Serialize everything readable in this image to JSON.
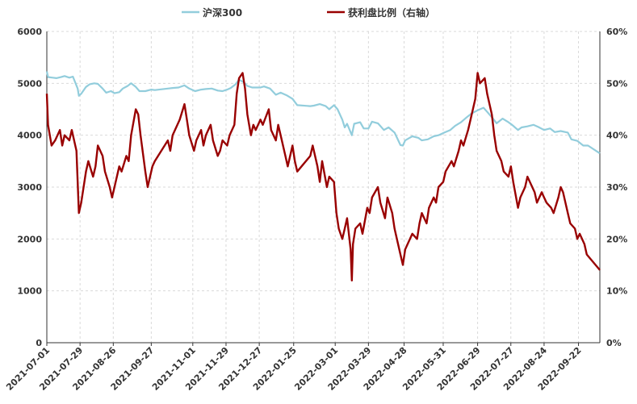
{
  "chart_data": {
    "type": "line",
    "legend": {
      "placement": "top-center"
    },
    "grid": true,
    "x_ticks": [
      "2021-07-01",
      "2021-07-29",
      "2021-08-26",
      "2021-09-27",
      "2021-11-01",
      "2021-11-29",
      "2021-12-27",
      "2022-01-25",
      "2022-03-01",
      "2022-03-29",
      "2022-04-28",
      "2022-05-31",
      "2022-06-29",
      "2022-07-27",
      "2022-08-24",
      "2022-09-22"
    ],
    "x_range": [
      "2021-07-01",
      "2022-10-10"
    ],
    "y_left": {
      "range": [
        0,
        6000
      ],
      "ticks": [
        "0",
        "1000",
        "2000",
        "3000",
        "4000",
        "5000",
        "6000"
      ]
    },
    "y_right": {
      "range": [
        0,
        60
      ],
      "ticks": [
        "0%",
        "10%",
        "20%",
        "30%",
        "40%",
        "50%",
        "60%"
      ]
    },
    "series": [
      {
        "name": "沪深300",
        "axis": "left",
        "color": "#92cddc",
        "points": [
          [
            "2021-07-01",
            5230
          ],
          [
            "2021-07-02",
            5120
          ],
          [
            "2021-07-06",
            5110
          ],
          [
            "2021-07-09",
            5100
          ],
          [
            "2021-07-13",
            5120
          ],
          [
            "2021-07-16",
            5140
          ],
          [
            "2021-07-20",
            5110
          ],
          [
            "2021-07-23",
            5130
          ],
          [
            "2021-07-27",
            4900
          ],
          [
            "2021-07-28",
            4760
          ],
          [
            "2021-07-30",
            4800
          ],
          [
            "2021-08-03",
            4930
          ],
          [
            "2021-08-06",
            4980
          ],
          [
            "2021-08-10",
            5000
          ],
          [
            "2021-08-13",
            4990
          ],
          [
            "2021-08-17",
            4900
          ],
          [
            "2021-08-20",
            4820
          ],
          [
            "2021-08-24",
            4850
          ],
          [
            "2021-08-27",
            4810
          ],
          [
            "2021-08-31",
            4830
          ],
          [
            "2021-09-03",
            4900
          ],
          [
            "2021-09-07",
            4950
          ],
          [
            "2021-09-10",
            5000
          ],
          [
            "2021-09-14",
            4930
          ],
          [
            "2021-09-17",
            4850
          ],
          [
            "2021-09-22",
            4850
          ],
          [
            "2021-09-27",
            4880
          ],
          [
            "2021-09-30",
            4870
          ],
          [
            "2021-10-11",
            4900
          ],
          [
            "2021-10-15",
            4910
          ],
          [
            "2021-10-20",
            4920
          ],
          [
            "2021-10-25",
            4960
          ],
          [
            "2021-10-29",
            4900
          ],
          [
            "2021-11-03",
            4850
          ],
          [
            "2021-11-08",
            4880
          ],
          [
            "2021-11-12",
            4890
          ],
          [
            "2021-11-17",
            4900
          ],
          [
            "2021-11-22",
            4860
          ],
          [
            "2021-11-26",
            4850
          ],
          [
            "2021-11-30",
            4880
          ],
          [
            "2021-12-03",
            4910
          ],
          [
            "2021-12-07",
            4980
          ],
          [
            "2021-12-10",
            5070
          ],
          [
            "2021-12-14",
            5020
          ],
          [
            "2021-12-17",
            4950
          ],
          [
            "2021-12-21",
            4920
          ],
          [
            "2021-12-24",
            4920
          ],
          [
            "2021-12-28",
            4920
          ],
          [
            "2021-12-31",
            4940
          ],
          [
            "2022-01-05",
            4900
          ],
          [
            "2022-01-10",
            4780
          ],
          [
            "2022-01-14",
            4820
          ],
          [
            "2022-01-19",
            4770
          ],
          [
            "2022-01-24",
            4700
          ],
          [
            "2022-01-28",
            4580
          ],
          [
            "2022-02-08",
            4560
          ],
          [
            "2022-02-11",
            4570
          ],
          [
            "2022-02-16",
            4600
          ],
          [
            "2022-02-21",
            4560
          ],
          [
            "2022-02-24",
            4500
          ],
          [
            "2022-02-28",
            4580
          ],
          [
            "2022-03-03",
            4500
          ],
          [
            "2022-03-07",
            4300
          ],
          [
            "2022-03-09",
            4150
          ],
          [
            "2022-03-11",
            4220
          ],
          [
            "2022-03-15",
            4000
          ],
          [
            "2022-03-17",
            4220
          ],
          [
            "2022-03-22",
            4250
          ],
          [
            "2022-03-25",
            4130
          ],
          [
            "2022-03-29",
            4130
          ],
          [
            "2022-04-01",
            4260
          ],
          [
            "2022-04-06",
            4230
          ],
          [
            "2022-04-11",
            4100
          ],
          [
            "2022-04-15",
            4150
          ],
          [
            "2022-04-20",
            4050
          ],
          [
            "2022-04-25",
            3810
          ],
          [
            "2022-04-27",
            3800
          ],
          [
            "2022-04-29",
            3900
          ],
          [
            "2022-05-05",
            3980
          ],
          [
            "2022-05-10",
            3950
          ],
          [
            "2022-05-13",
            3900
          ],
          [
            "2022-05-18",
            3920
          ],
          [
            "2022-05-23",
            3980
          ],
          [
            "2022-05-27",
            4000
          ],
          [
            "2022-06-01",
            4050
          ],
          [
            "2022-06-06",
            4100
          ],
          [
            "2022-06-10",
            4180
          ],
          [
            "2022-06-15",
            4250
          ],
          [
            "2022-06-20",
            4350
          ],
          [
            "2022-06-24",
            4420
          ],
          [
            "2022-06-29",
            4480
          ],
          [
            "2022-07-04",
            4530
          ],
          [
            "2022-07-07",
            4450
          ],
          [
            "2022-07-12",
            4320
          ],
          [
            "2022-07-15",
            4230
          ],
          [
            "2022-07-20",
            4320
          ],
          [
            "2022-07-25",
            4250
          ],
          [
            "2022-07-28",
            4200
          ],
          [
            "2022-08-02",
            4100
          ],
          [
            "2022-08-05",
            4150
          ],
          [
            "2022-08-10",
            4170
          ],
          [
            "2022-08-15",
            4200
          ],
          [
            "2022-08-19",
            4160
          ],
          [
            "2022-08-24",
            4100
          ],
          [
            "2022-08-29",
            4130
          ],
          [
            "2022-09-02",
            4060
          ],
          [
            "2022-09-07",
            4080
          ],
          [
            "2022-09-13",
            4050
          ],
          [
            "2022-09-16",
            3920
          ],
          [
            "2022-09-21",
            3890
          ],
          [
            "2022-09-26",
            3800
          ],
          [
            "2022-09-30",
            3800
          ],
          [
            "2022-10-10",
            3650
          ]
        ]
      },
      {
        "name": "获利盘比例（右轴）",
        "axis": "right",
        "color": "#990000",
        "points": [
          [
            "2021-07-01",
            48
          ],
          [
            "2021-07-02",
            42
          ],
          [
            "2021-07-05",
            38
          ],
          [
            "2021-07-08",
            39
          ],
          [
            "2021-07-12",
            41
          ],
          [
            "2021-07-14",
            38
          ],
          [
            "2021-07-16",
            40
          ],
          [
            "2021-07-20",
            39
          ],
          [
            "2021-07-22",
            41
          ],
          [
            "2021-07-26",
            37
          ],
          [
            "2021-07-28",
            25
          ],
          [
            "2021-07-30",
            27
          ],
          [
            "2021-08-03",
            33
          ],
          [
            "2021-08-05",
            35
          ],
          [
            "2021-08-09",
            32
          ],
          [
            "2021-08-11",
            34
          ],
          [
            "2021-08-13",
            38
          ],
          [
            "2021-08-17",
            36
          ],
          [
            "2021-08-19",
            33
          ],
          [
            "2021-08-23",
            30
          ],
          [
            "2021-08-25",
            28
          ],
          [
            "2021-08-27",
            30
          ],
          [
            "2021-08-31",
            34
          ],
          [
            "2021-09-02",
            33
          ],
          [
            "2021-09-06",
            36
          ],
          [
            "2021-09-08",
            35
          ],
          [
            "2021-09-10",
            40
          ],
          [
            "2021-09-14",
            45
          ],
          [
            "2021-09-16",
            44
          ],
          [
            "2021-09-18",
            40
          ],
          [
            "2021-09-22",
            33
          ],
          [
            "2021-09-24",
            30
          ],
          [
            "2021-09-28",
            34
          ],
          [
            "2021-09-30",
            35
          ],
          [
            "2021-10-11",
            39
          ],
          [
            "2021-10-13",
            37
          ],
          [
            "2021-10-15",
            40
          ],
          [
            "2021-10-19",
            42
          ],
          [
            "2021-10-21",
            43
          ],
          [
            "2021-10-25",
            46
          ],
          [
            "2021-10-27",
            43
          ],
          [
            "2021-10-29",
            40
          ],
          [
            "2021-11-02",
            37
          ],
          [
            "2021-11-04",
            39
          ],
          [
            "2021-11-08",
            41
          ],
          [
            "2021-11-10",
            38
          ],
          [
            "2021-11-12",
            40
          ],
          [
            "2021-11-16",
            42
          ],
          [
            "2021-11-18",
            39
          ],
          [
            "2021-11-22",
            36
          ],
          [
            "2021-11-24",
            37
          ],
          [
            "2021-11-26",
            39
          ],
          [
            "2021-11-30",
            38
          ],
          [
            "2021-12-02",
            40
          ],
          [
            "2021-12-06",
            42
          ],
          [
            "2021-12-08",
            48
          ],
          [
            "2021-12-10",
            51
          ],
          [
            "2021-12-13",
            52
          ],
          [
            "2021-12-15",
            49
          ],
          [
            "2021-12-17",
            44
          ],
          [
            "2021-12-20",
            40
          ],
          [
            "2021-12-22",
            42
          ],
          [
            "2021-12-24",
            41
          ],
          [
            "2021-12-28",
            43
          ],
          [
            "2021-12-30",
            42
          ],
          [
            "2022-01-04",
            45
          ],
          [
            "2022-01-06",
            41
          ],
          [
            "2022-01-10",
            39
          ],
          [
            "2022-01-12",
            42
          ],
          [
            "2022-01-14",
            40
          ],
          [
            "2022-01-18",
            36
          ],
          [
            "2022-01-20",
            34
          ],
          [
            "2022-01-24",
            38
          ],
          [
            "2022-01-26",
            35
          ],
          [
            "2022-01-28",
            33
          ],
          [
            "2022-02-08",
            36
          ],
          [
            "2022-02-10",
            38
          ],
          [
            "2022-02-14",
            34
          ],
          [
            "2022-02-16",
            31
          ],
          [
            "2022-02-18",
            35
          ],
          [
            "2022-02-22",
            30
          ],
          [
            "2022-02-24",
            32
          ],
          [
            "2022-02-28",
            31
          ],
          [
            "2022-03-02",
            25
          ],
          [
            "2022-03-04",
            22
          ],
          [
            "2022-03-07",
            20
          ],
          [
            "2022-03-09",
            22
          ],
          [
            "2022-03-11",
            24
          ],
          [
            "2022-03-14",
            18
          ],
          [
            "2022-03-15",
            12
          ],
          [
            "2022-03-16",
            19
          ],
          [
            "2022-03-18",
            22
          ],
          [
            "2022-03-22",
            23
          ],
          [
            "2022-03-24",
            21
          ],
          [
            "2022-03-28",
            26
          ],
          [
            "2022-03-30",
            25
          ],
          [
            "2022-04-01",
            28
          ],
          [
            "2022-04-06",
            30
          ],
          [
            "2022-04-08",
            27
          ],
          [
            "2022-04-12",
            24
          ],
          [
            "2022-04-14",
            28
          ],
          [
            "2022-04-18",
            25
          ],
          [
            "2022-04-20",
            22
          ],
          [
            "2022-04-22",
            20
          ],
          [
            "2022-04-25",
            17
          ],
          [
            "2022-04-27",
            15
          ],
          [
            "2022-04-29",
            18
          ],
          [
            "2022-05-05",
            21
          ],
          [
            "2022-05-09",
            20
          ],
          [
            "2022-05-11",
            23
          ],
          [
            "2022-05-13",
            25
          ],
          [
            "2022-05-17",
            23
          ],
          [
            "2022-05-19",
            26
          ],
          [
            "2022-05-23",
            28
          ],
          [
            "2022-05-25",
            27
          ],
          [
            "2022-05-27",
            30
          ],
          [
            "2022-05-31",
            31
          ],
          [
            "2022-06-02",
            33
          ],
          [
            "2022-06-07",
            35
          ],
          [
            "2022-06-09",
            34
          ],
          [
            "2022-06-13",
            37
          ],
          [
            "2022-06-15",
            39
          ],
          [
            "2022-06-17",
            38
          ],
          [
            "2022-06-21",
            41
          ],
          [
            "2022-06-23",
            43
          ],
          [
            "2022-06-27",
            47
          ],
          [
            "2022-06-29",
            52
          ],
          [
            "2022-07-01",
            50
          ],
          [
            "2022-07-05",
            51
          ],
          [
            "2022-07-07",
            48
          ],
          [
            "2022-07-11",
            44
          ],
          [
            "2022-07-13",
            40
          ],
          [
            "2022-07-15",
            37
          ],
          [
            "2022-07-19",
            35
          ],
          [
            "2022-07-21",
            33
          ],
          [
            "2022-07-25",
            32
          ],
          [
            "2022-07-27",
            34
          ],
          [
            "2022-07-29",
            31
          ],
          [
            "2022-08-02",
            26
          ],
          [
            "2022-08-04",
            28
          ],
          [
            "2022-08-08",
            30
          ],
          [
            "2022-08-10",
            32
          ],
          [
            "2022-08-12",
            31
          ],
          [
            "2022-08-16",
            29
          ],
          [
            "2022-08-18",
            27
          ],
          [
            "2022-08-22",
            29
          ],
          [
            "2022-08-24",
            28
          ],
          [
            "2022-08-26",
            27
          ],
          [
            "2022-08-30",
            26
          ],
          [
            "2022-09-01",
            25
          ],
          [
            "2022-09-05",
            28
          ],
          [
            "2022-09-07",
            30
          ],
          [
            "2022-09-09",
            29
          ],
          [
            "2022-09-13",
            25
          ],
          [
            "2022-09-15",
            23
          ],
          [
            "2022-09-19",
            22
          ],
          [
            "2022-09-21",
            20
          ],
          [
            "2022-09-23",
            21
          ],
          [
            "2022-09-27",
            19
          ],
          [
            "2022-09-29",
            17
          ],
          [
            "2022-10-10",
            14
          ]
        ]
      }
    ]
  }
}
